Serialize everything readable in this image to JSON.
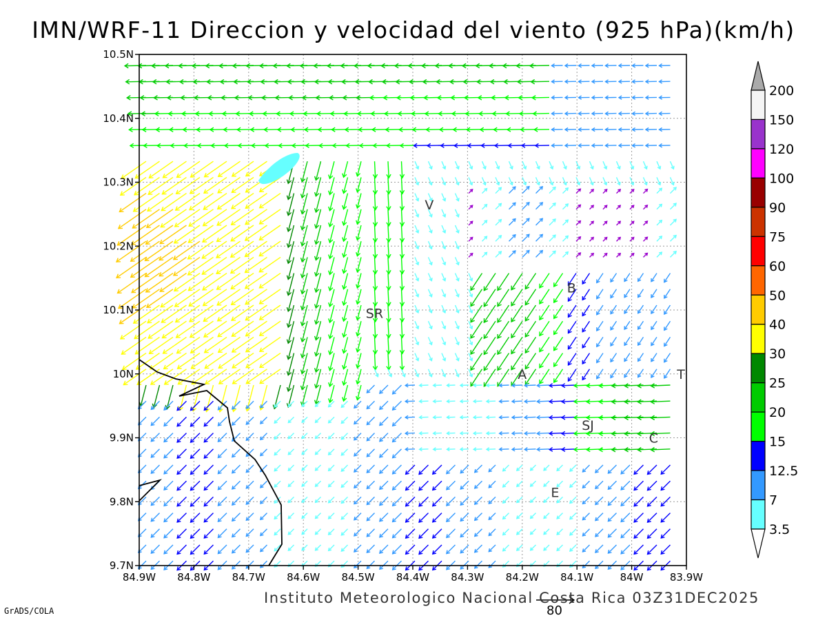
{
  "title": "IMN/WRF-11 Direccion y velocidad del viento (925 hPa)(km/h)",
  "footer": {
    "credit": "GrADS/COLA",
    "institute": "Instituto Meteorologico Nacional Costa Rica 03Z31DEC2025",
    "reference_vector_label": "80"
  },
  "map": {
    "lon_range": [
      -84.9,
      -83.9
    ],
    "lat_range": [
      9.7,
      10.5
    ],
    "lon_ticks": [
      "84.9W",
      "84.8W",
      "84.7W",
      "84.6W",
      "84.5W",
      "84.4W",
      "84.3W",
      "84.2W",
      "84.1W",
      "84W",
      "83.9W"
    ],
    "lat_ticks": [
      "9.7N",
      "9.8N",
      "9.9N",
      "10N",
      "10.1N",
      "10.2N",
      "10.3N",
      "10.4N",
      "10.5N"
    ],
    "grid": true,
    "cities": [
      {
        "label": "V",
        "lon": -84.37,
        "lat": 10.265
      },
      {
        "label": "SR",
        "lon": -84.47,
        "lat": 10.095
      },
      {
        "label": "B",
        "lon": -84.11,
        "lat": 10.135
      },
      {
        "label": "A",
        "lon": -84.2,
        "lat": 10.0
      },
      {
        "label": "SJ",
        "lon": -84.08,
        "lat": 9.92
      },
      {
        "label": "C",
        "lon": -83.96,
        "lat": 9.9
      },
      {
        "label": "E",
        "lon": -84.14,
        "lat": 9.815
      },
      {
        "label": "T",
        "lon": -83.91,
        "lat": 10.0
      }
    ]
  },
  "colorbar": {
    "labels": [
      "200",
      "150",
      "120",
      "100",
      "90",
      "75",
      "60",
      "50",
      "40",
      "30",
      "25",
      "20",
      "15",
      "12.5",
      "7",
      "3.5"
    ],
    "colors": [
      "#aaaaaa",
      "#f5f5f5",
      "#9933cc",
      "#ff00ff",
      "#990000",
      "#cc3300",
      "#ff0000",
      "#ff6600",
      "#ffcc00",
      "#ffff00",
      "#008800",
      "#00cc00",
      "#00ff00",
      "#0000ff",
      "#3399ff",
      "#66ffff"
    ]
  }
}
